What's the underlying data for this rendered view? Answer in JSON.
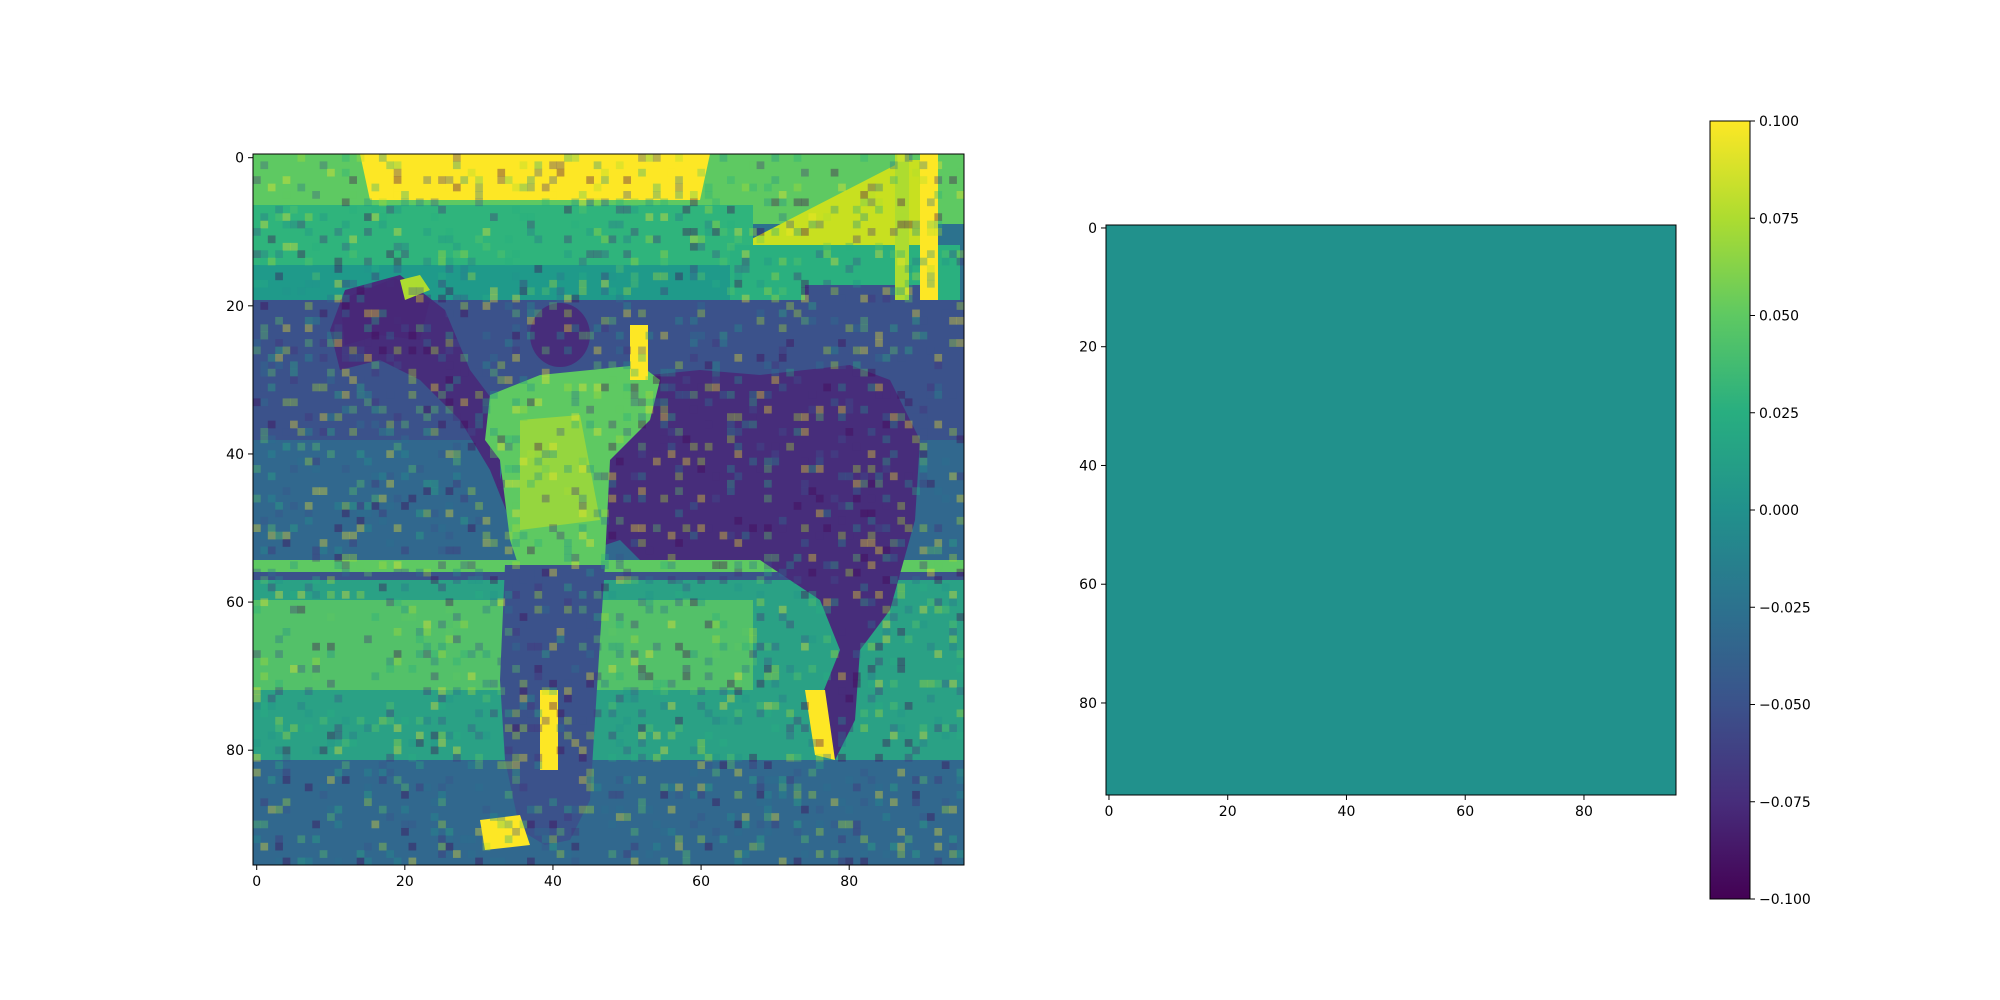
{
  "chart_data": [
    {
      "type": "heatmap",
      "content": "grayscale photograph of a person leading a horse, rendered with viridis colormap",
      "colormap": "viridis",
      "grid_size": 96,
      "xlim": [
        0,
        96
      ],
      "ylim": [
        96,
        0
      ],
      "x_ticks": [
        0,
        20,
        40,
        60,
        80
      ],
      "y_ticks": [
        0,
        20,
        40,
        60,
        80
      ],
      "x_tick_labels": [
        "0",
        "20",
        "40",
        "60",
        "80"
      ],
      "y_tick_labels": [
        "0",
        "20",
        "40",
        "60",
        "80"
      ],
      "grid": false,
      "colorbar": false
    },
    {
      "type": "heatmap",
      "content": "uniform field, all values 0",
      "colormap": "viridis",
      "grid_size": 96,
      "uniform_value": 0.0,
      "uniform_color": "#21918c",
      "xlim": [
        0,
        96
      ],
      "ylim": [
        96,
        0
      ],
      "x_ticks": [
        0,
        20,
        40,
        60,
        80
      ],
      "y_ticks": [
        0,
        20,
        40,
        60,
        80
      ],
      "x_tick_labels": [
        "0",
        "20",
        "40",
        "60",
        "80"
      ],
      "y_tick_labels": [
        "0",
        "20",
        "40",
        "60",
        "80"
      ],
      "grid": false,
      "colorbar": {
        "range": [
          -0.1,
          0.1
        ],
        "ticks": [
          0.1,
          0.075,
          0.05,
          0.025,
          0.0,
          -0.025,
          -0.05,
          -0.075,
          -0.1
        ],
        "tick_labels": [
          "0.100",
          "0.075",
          "0.050",
          "0.025",
          "0.000",
          "−0.025",
          "−0.050",
          "−0.075",
          "−0.100"
        ]
      }
    }
  ]
}
